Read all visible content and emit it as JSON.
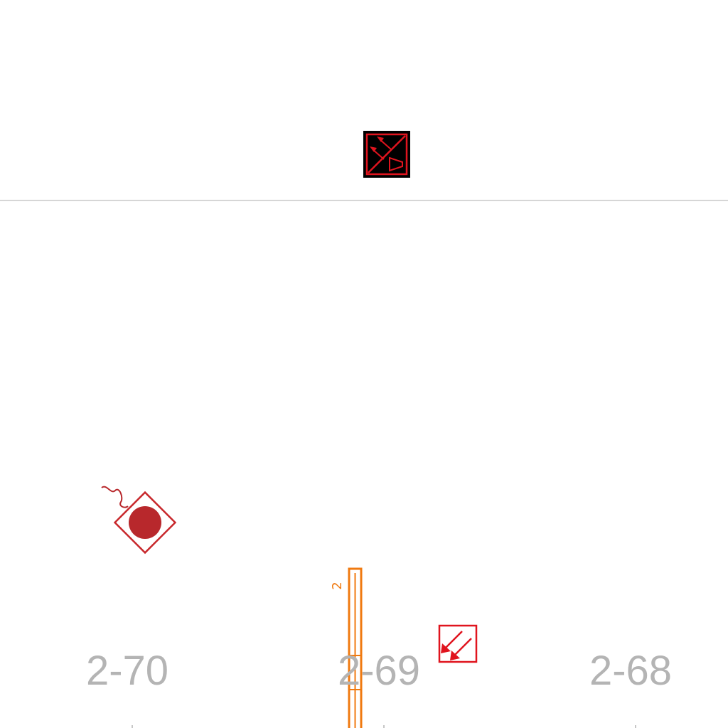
{
  "colors": {
    "background": "#ffffff",
    "divider": "#c8c8c8",
    "grid_label": "#b4b4b4",
    "red_symbol": "#e0141e",
    "dark_red_fill": "#b8282c",
    "orange_strip": "#f07a10",
    "panel_bg": "#000000"
  },
  "icons": {
    "panel": "smoke-detector-panel-icon",
    "detector": "detector-with-cable-icon",
    "vent": "air-outlet-arrows-icon",
    "strip": "orange-vertical-strip"
  },
  "strip": {
    "tag": "2"
  },
  "grid_labels": [
    "2-70",
    "2-69",
    "2-68"
  ]
}
